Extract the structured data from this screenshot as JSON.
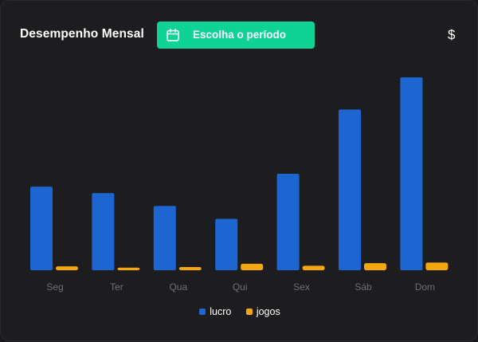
{
  "header": {
    "title": "Desempenho Mensal",
    "period_button_label": "Escolha o período",
    "period_icon": "calendar-icon",
    "currency_icon": "$"
  },
  "colors": {
    "lucro": "#1d66d2",
    "jogos": "#f5a70f",
    "accent": "#0fd394"
  },
  "legend": {
    "items": [
      {
        "label": "lucro",
        "color": "#1d66d2"
      },
      {
        "label": "jogos",
        "color": "#f5a70f"
      }
    ]
  },
  "chart_data": {
    "type": "bar",
    "categories": [
      "Seg",
      "Ter",
      "Qua",
      "Qui",
      "Sex",
      "Sáb",
      "Dom"
    ],
    "series": [
      {
        "name": "lucro",
        "values": [
          65,
          60,
          50,
          40,
          75,
          125,
          150
        ]
      },
      {
        "name": "jogos",
        "values": [
          3,
          2,
          2.5,
          5,
          3.5,
          5.5,
          6
        ]
      }
    ],
    "xlabel": "",
    "ylabel": "",
    "ylim": [
      0,
      150
    ],
    "grid": false,
    "legend_placement": "bottom"
  }
}
